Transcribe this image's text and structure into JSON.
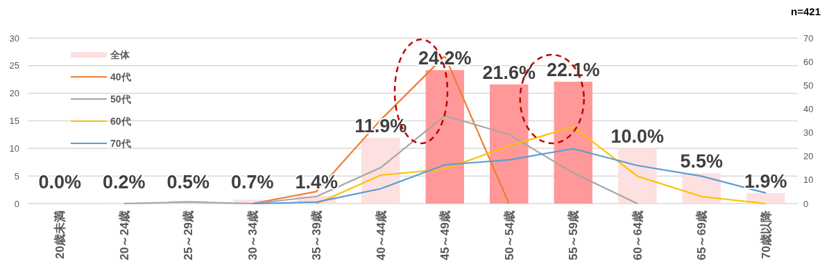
{
  "chart_data": {
    "type": "bar",
    "categories": [
      "20歳未満",
      "20～24歳",
      "25～29歳",
      "30～34歳",
      "35～39歳",
      "40～44歳",
      "45～49歳",
      "50～54歳",
      "55～59歳",
      "60～64歳",
      "65～69歳",
      "70歳以降"
    ],
    "series": [
      {
        "name": "全体",
        "colors": [
          "#fde0e0",
          "#fde0e0",
          "#fde0e0",
          "#fde0e0",
          "#fde0e0",
          "#fde0e0",
          "#ff9999",
          "#ff9999",
          "#ff9999",
          "#fde0e0",
          "#fde0e0",
          "#fde0e0"
        ],
        "color": "#fde0e0",
        "values": [
          0.0,
          0.2,
          0.5,
          0.7,
          1.4,
          11.9,
          24.2,
          21.6,
          22.1,
          10.0,
          5.5,
          1.9
        ],
        "value_labels": [
          "0.0%",
          "0.2%",
          "0.5%",
          "0.7%",
          "1.4%",
          "11.9%",
          "24.2%",
          "21.6%",
          "22.1%",
          "10.0%",
          "5.5%",
          "1.9%"
        ]
      },
      {
        "name": "40代",
        "type": "line",
        "axis": "y2",
        "color": "#ed7d31",
        "values": [
          null,
          null,
          null,
          0,
          5.1,
          35.4,
          62.5,
          0,
          null,
          null,
          null,
          null
        ]
      },
      {
        "name": "50代",
        "type": "line",
        "axis": "y2",
        "color": "#a5a5a5",
        "values": [
          null,
          0,
          0.7,
          0,
          3,
          15.2,
          37.2,
          29.2,
          13,
          0,
          null,
          null
        ]
      },
      {
        "name": "60代",
        "type": "line",
        "axis": "y2",
        "color": "#ffc000",
        "values": [
          null,
          null,
          null,
          null,
          0,
          12,
          14.6,
          24.4,
          32.5,
          11.6,
          3,
          0
        ]
      },
      {
        "name": "70代",
        "type": "line",
        "axis": "y2",
        "color": "#5b9bd5",
        "values": [
          null,
          null,
          null,
          0,
          0.6,
          6.3,
          16.4,
          18.5,
          23.2,
          16.1,
          11.6,
          4.5
        ]
      }
    ],
    "ylim": [
      0,
      30
    ],
    "yticks": [
      0,
      5,
      10,
      15,
      20,
      25,
      30
    ],
    "y2lim": [
      0,
      70
    ],
    "y2ticks": [
      0,
      10,
      20,
      30,
      40,
      50,
      60,
      70
    ],
    "grid": "y",
    "legend": "top left",
    "annotations": [
      "n=421"
    ]
  }
}
